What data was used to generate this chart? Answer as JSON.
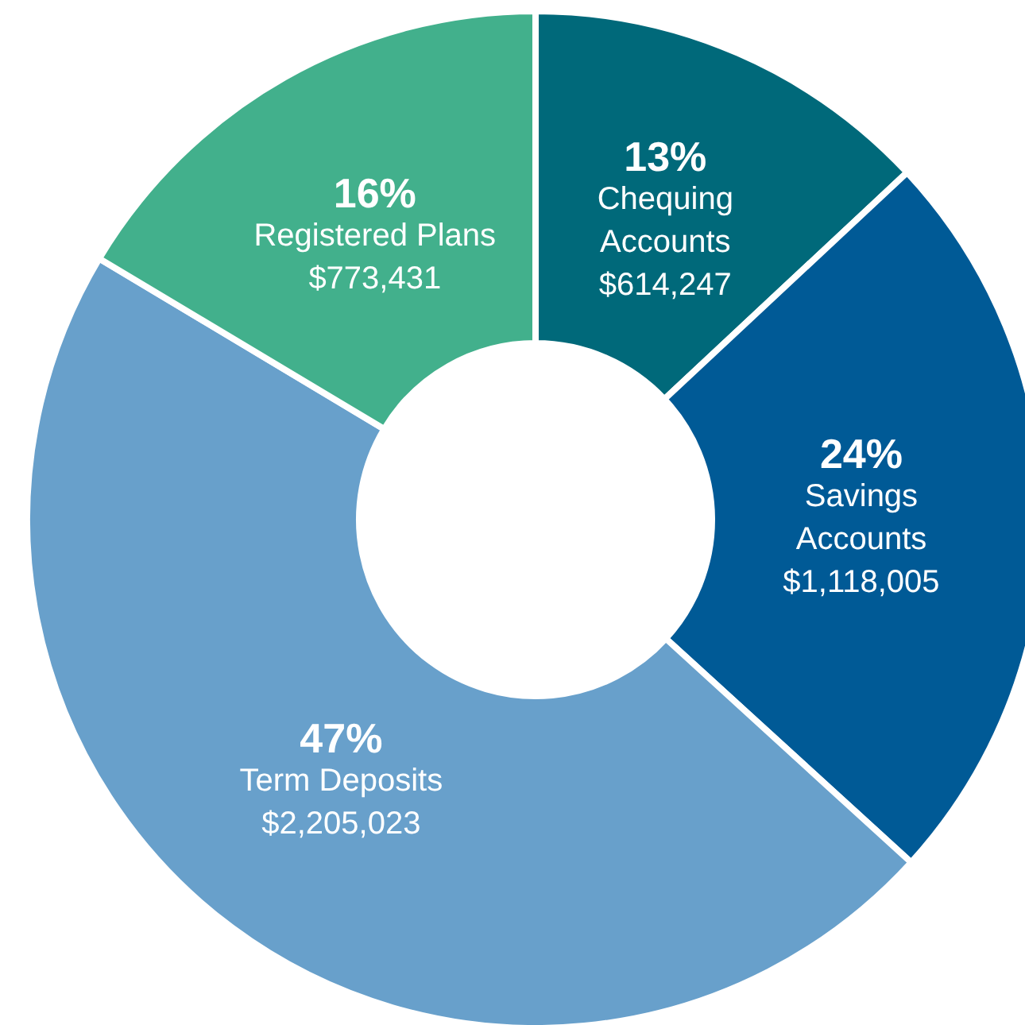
{
  "chart_data": {
    "type": "donut",
    "categories": [
      "Chequing Accounts",
      "Savings Accounts",
      "Term Deposits",
      "Registered Plans"
    ],
    "values": [
      614247,
      1118005,
      2205023,
      773431
    ],
    "colors": [
      "#00697a",
      "#005a96",
      "#68a0cb",
      "#42b08c"
    ],
    "value_labels": [
      "$614,247",
      "$1,118,005",
      "$2,205,023",
      "$773,431"
    ],
    "annotations": [
      "13%",
      "24%",
      "47%",
      "16%"
    ]
  }
}
